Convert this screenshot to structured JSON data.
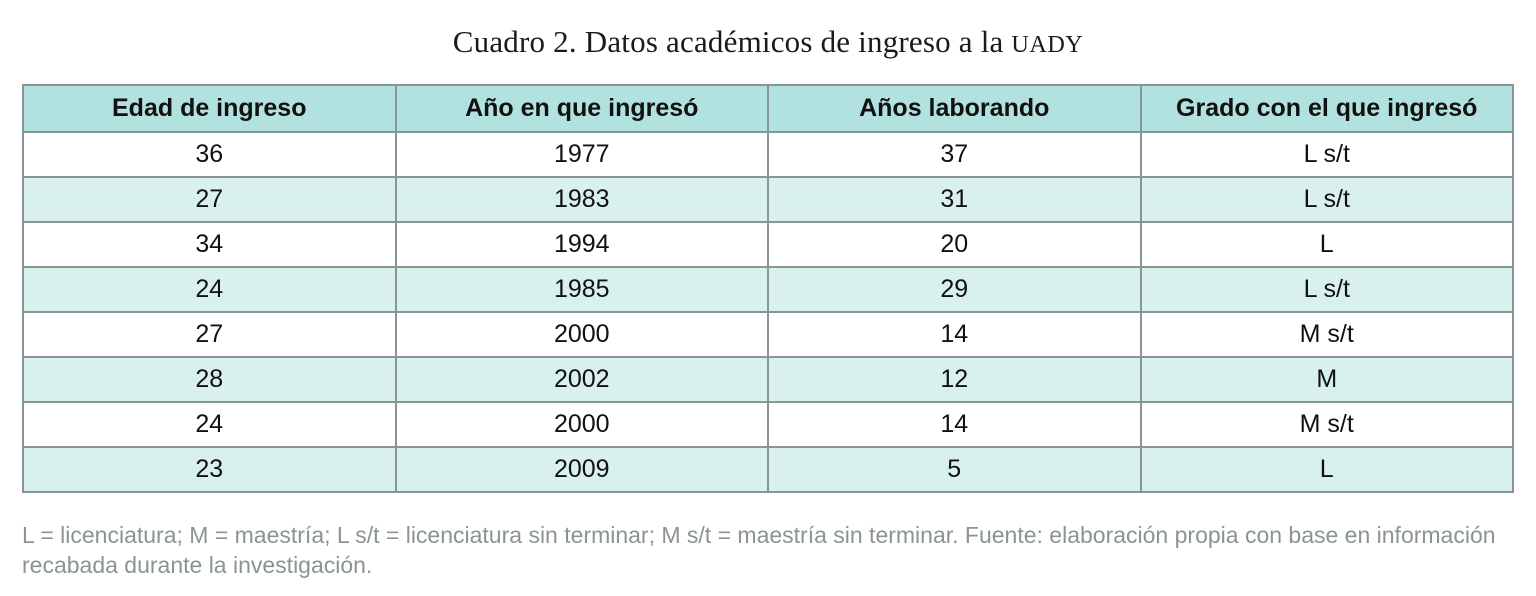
{
  "title": {
    "prefix": "Cuadro 2. Datos académicos de ingreso a la ",
    "acronym": "UADY"
  },
  "table": {
    "headers": [
      "Edad de ingreso",
      "Año en que ingresó",
      "Años laborando",
      "Grado con el que ingresó"
    ],
    "rows": [
      [
        "36",
        "1977",
        "37",
        "L s/t"
      ],
      [
        "27",
        "1983",
        "31",
        "L s/t"
      ],
      [
        "34",
        "1994",
        "20",
        "L"
      ],
      [
        "24",
        "1985",
        "29",
        "L s/t"
      ],
      [
        "27",
        "2000",
        "14",
        "M s/t"
      ],
      [
        "28",
        "2002",
        "12",
        "M"
      ],
      [
        "24",
        "2000",
        "14",
        "M s/t"
      ],
      [
        "23",
        "2009",
        "5",
        "L"
      ]
    ]
  },
  "footnote": "L = licenciatura; M = maestría; L s/t = licenciatura sin terminar; M s/t = maestría sin terminar. Fuente: elaboración propia con base en información recabada durante la investigación.",
  "colors": {
    "header_bg": "#b2e2df",
    "alt_row_bg": "#d9f1ee",
    "border": "#8a9494",
    "footnote_text": "#8b9494",
    "body_text": "#111111"
  }
}
